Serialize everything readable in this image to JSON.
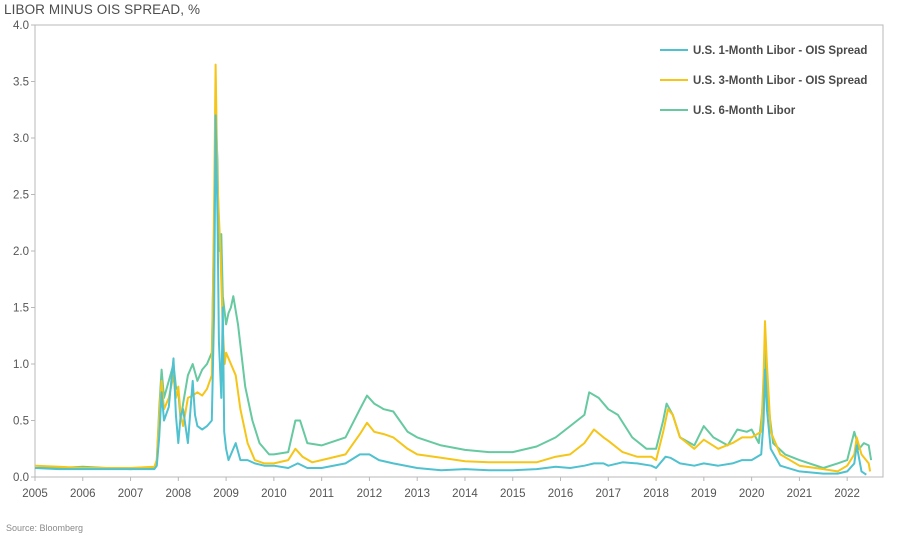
{
  "chart_data": {
    "type": "line",
    "title": "LIBOR MINUS OIS SPREAD, %",
    "source": "Source: Bloomberg",
    "xlabel": "",
    "ylabel": "",
    "xlim": [
      2005.0,
      2022.75
    ],
    "ylim": [
      0.0,
      4.0
    ],
    "x_ticks": [
      "2005",
      "2006",
      "2007",
      "2008",
      "2009",
      "2010",
      "2011",
      "2012",
      "2013",
      "2014",
      "2015",
      "2016",
      "2017",
      "2018",
      "2019",
      "2020",
      "2021",
      "2022"
    ],
    "y_ticks": [
      "0.0",
      "0.5",
      "1.0",
      "1.5",
      "2.0",
      "2.5",
      "3.0",
      "3.5",
      "4.0"
    ],
    "grid": false,
    "legend_position": "top-right",
    "series": [
      {
        "name": "U.S. 1-Month Libor - OIS Spread",
        "color": "#4fc1cf",
        "points": [
          [
            2005.0,
            0.08
          ],
          [
            2005.5,
            0.07
          ],
          [
            2006.0,
            0.07
          ],
          [
            2006.5,
            0.07
          ],
          [
            2007.0,
            0.07
          ],
          [
            2007.5,
            0.07
          ],
          [
            2007.55,
            0.1
          ],
          [
            2007.6,
            0.35
          ],
          [
            2007.65,
            0.75
          ],
          [
            2007.7,
            0.5
          ],
          [
            2007.8,
            0.62
          ],
          [
            2007.9,
            1.05
          ],
          [
            2007.95,
            0.55
          ],
          [
            2008.0,
            0.3
          ],
          [
            2008.05,
            0.55
          ],
          [
            2008.1,
            0.6
          ],
          [
            2008.2,
            0.3
          ],
          [
            2008.3,
            0.85
          ],
          [
            2008.35,
            0.55
          ],
          [
            2008.4,
            0.45
          ],
          [
            2008.5,
            0.42
          ],
          [
            2008.6,
            0.45
          ],
          [
            2008.7,
            0.5
          ],
          [
            2008.75,
            1.5
          ],
          [
            2008.78,
            3.2
          ],
          [
            2008.82,
            2.3
          ],
          [
            2008.85,
            1.2
          ],
          [
            2008.9,
            0.7
          ],
          [
            2008.93,
            1.5
          ],
          [
            2008.96,
            0.4
          ],
          [
            2009.0,
            0.25
          ],
          [
            2009.05,
            0.15
          ],
          [
            2009.2,
            0.3
          ],
          [
            2009.3,
            0.15
          ],
          [
            2009.45,
            0.15
          ],
          [
            2009.6,
            0.12
          ],
          [
            2009.8,
            0.1
          ],
          [
            2010.0,
            0.1
          ],
          [
            2010.3,
            0.08
          ],
          [
            2010.5,
            0.12
          ],
          [
            2010.7,
            0.08
          ],
          [
            2011.0,
            0.08
          ],
          [
            2011.5,
            0.12
          ],
          [
            2011.8,
            0.2
          ],
          [
            2012.0,
            0.2
          ],
          [
            2012.2,
            0.15
          ],
          [
            2012.5,
            0.12
          ],
          [
            2013.0,
            0.08
          ],
          [
            2013.5,
            0.06
          ],
          [
            2014.0,
            0.07
          ],
          [
            2014.5,
            0.06
          ],
          [
            2015.0,
            0.06
          ],
          [
            2015.5,
            0.07
          ],
          [
            2015.9,
            0.09
          ],
          [
            2016.2,
            0.08
          ],
          [
            2016.5,
            0.1
          ],
          [
            2016.7,
            0.12
          ],
          [
            2016.9,
            0.12
          ],
          [
            2017.0,
            0.1
          ],
          [
            2017.3,
            0.13
          ],
          [
            2017.6,
            0.12
          ],
          [
            2017.9,
            0.1
          ],
          [
            2018.0,
            0.08
          ],
          [
            2018.2,
            0.18
          ],
          [
            2018.3,
            0.17
          ],
          [
            2018.5,
            0.12
          ],
          [
            2018.8,
            0.1
          ],
          [
            2019.0,
            0.12
          ],
          [
            2019.3,
            0.1
          ],
          [
            2019.6,
            0.12
          ],
          [
            2019.8,
            0.15
          ],
          [
            2020.0,
            0.15
          ],
          [
            2020.2,
            0.2
          ],
          [
            2020.25,
            0.5
          ],
          [
            2020.28,
            0.95
          ],
          [
            2020.32,
            0.6
          ],
          [
            2020.4,
            0.25
          ],
          [
            2020.6,
            0.1
          ],
          [
            2021.0,
            0.05
          ],
          [
            2021.5,
            0.03
          ],
          [
            2021.8,
            0.03
          ],
          [
            2022.0,
            0.05
          ],
          [
            2022.15,
            0.12
          ],
          [
            2022.2,
            0.28
          ],
          [
            2022.3,
            0.05
          ],
          [
            2022.4,
            0.02
          ]
        ]
      },
      {
        "name": "U.S. 3-Month Libor - OIS Spread",
        "color": "#f5c518",
        "points": [
          [
            2005.0,
            0.1
          ],
          [
            2005.5,
            0.09
          ],
          [
            2006.0,
            0.08
          ],
          [
            2006.5,
            0.08
          ],
          [
            2007.0,
            0.08
          ],
          [
            2007.5,
            0.09
          ],
          [
            2007.55,
            0.15
          ],
          [
            2007.6,
            0.55
          ],
          [
            2007.65,
            0.85
          ],
          [
            2007.7,
            0.6
          ],
          [
            2007.8,
            0.7
          ],
          [
            2007.9,
            0.9
          ],
          [
            2007.95,
            0.7
          ],
          [
            2008.0,
            0.8
          ],
          [
            2008.05,
            0.55
          ],
          [
            2008.1,
            0.45
          ],
          [
            2008.2,
            0.7
          ],
          [
            2008.3,
            0.72
          ],
          [
            2008.4,
            0.75
          ],
          [
            2008.5,
            0.72
          ],
          [
            2008.6,
            0.78
          ],
          [
            2008.7,
            0.9
          ],
          [
            2008.75,
            2.5
          ],
          [
            2008.78,
            3.65
          ],
          [
            2008.82,
            2.6
          ],
          [
            2008.88,
            2.0
          ],
          [
            2008.93,
            1.3
          ],
          [
            2008.97,
            1.0
          ],
          [
            2009.0,
            1.1
          ],
          [
            2009.1,
            1.0
          ],
          [
            2009.2,
            0.9
          ],
          [
            2009.3,
            0.6
          ],
          [
            2009.45,
            0.3
          ],
          [
            2009.6,
            0.15
          ],
          [
            2009.8,
            0.12
          ],
          [
            2010.0,
            0.12
          ],
          [
            2010.3,
            0.15
          ],
          [
            2010.45,
            0.25
          ],
          [
            2010.6,
            0.18
          ],
          [
            2010.8,
            0.13
          ],
          [
            2011.0,
            0.15
          ],
          [
            2011.5,
            0.2
          ],
          [
            2011.8,
            0.38
          ],
          [
            2011.95,
            0.48
          ],
          [
            2012.1,
            0.4
          ],
          [
            2012.3,
            0.38
          ],
          [
            2012.5,
            0.35
          ],
          [
            2012.8,
            0.25
          ],
          [
            2013.0,
            0.2
          ],
          [
            2013.5,
            0.17
          ],
          [
            2014.0,
            0.14
          ],
          [
            2014.5,
            0.13
          ],
          [
            2015.0,
            0.13
          ],
          [
            2015.5,
            0.13
          ],
          [
            2015.9,
            0.18
          ],
          [
            2016.2,
            0.2
          ],
          [
            2016.5,
            0.3
          ],
          [
            2016.7,
            0.42
          ],
          [
            2016.9,
            0.35
          ],
          [
            2017.0,
            0.32
          ],
          [
            2017.3,
            0.22
          ],
          [
            2017.6,
            0.18
          ],
          [
            2017.9,
            0.18
          ],
          [
            2018.0,
            0.15
          ],
          [
            2018.15,
            0.4
          ],
          [
            2018.25,
            0.6
          ],
          [
            2018.35,
            0.55
          ],
          [
            2018.5,
            0.35
          ],
          [
            2018.8,
            0.25
          ],
          [
            2019.0,
            0.33
          ],
          [
            2019.3,
            0.25
          ],
          [
            2019.6,
            0.3
          ],
          [
            2019.8,
            0.35
          ],
          [
            2020.0,
            0.35
          ],
          [
            2020.2,
            0.4
          ],
          [
            2020.25,
            0.9
          ],
          [
            2020.28,
            1.38
          ],
          [
            2020.32,
            1.0
          ],
          [
            2020.4,
            0.4
          ],
          [
            2020.6,
            0.2
          ],
          [
            2021.0,
            0.1
          ],
          [
            2021.5,
            0.07
          ],
          [
            2021.8,
            0.05
          ],
          [
            2022.0,
            0.1
          ],
          [
            2022.15,
            0.2
          ],
          [
            2022.2,
            0.35
          ],
          [
            2022.3,
            0.2
          ],
          [
            2022.45,
            0.12
          ],
          [
            2022.48,
            0.05
          ]
        ]
      },
      {
        "name": "U.S. 6-Month Libor",
        "color": "#66c9a0",
        "points": [
          [
            2005.0,
            0.08
          ],
          [
            2005.5,
            0.08
          ],
          [
            2006.0,
            0.09
          ],
          [
            2006.5,
            0.08
          ],
          [
            2007.0,
            0.07
          ],
          [
            2007.5,
            0.08
          ],
          [
            2007.55,
            0.15
          ],
          [
            2007.6,
            0.6
          ],
          [
            2007.65,
            0.95
          ],
          [
            2007.7,
            0.7
          ],
          [
            2007.8,
            0.85
          ],
          [
            2007.9,
            1.0
          ],
          [
            2007.95,
            0.8
          ],
          [
            2008.0,
            0.75
          ],
          [
            2008.05,
            0.5
          ],
          [
            2008.1,
            0.65
          ],
          [
            2008.2,
            0.9
          ],
          [
            2008.3,
            1.0
          ],
          [
            2008.4,
            0.85
          ],
          [
            2008.5,
            0.95
          ],
          [
            2008.6,
            1.0
          ],
          [
            2008.7,
            1.1
          ],
          [
            2008.75,
            2.2
          ],
          [
            2008.78,
            3.2
          ],
          [
            2008.82,
            2.8
          ],
          [
            2008.85,
            2.0
          ],
          [
            2008.9,
            2.15
          ],
          [
            2008.93,
            1.6
          ],
          [
            2009.0,
            1.35
          ],
          [
            2009.05,
            1.45
          ],
          [
            2009.1,
            1.5
          ],
          [
            2009.15,
            1.6
          ],
          [
            2009.25,
            1.35
          ],
          [
            2009.4,
            0.8
          ],
          [
            2009.55,
            0.5
          ],
          [
            2009.7,
            0.3
          ],
          [
            2009.9,
            0.2
          ],
          [
            2010.0,
            0.2
          ],
          [
            2010.3,
            0.22
          ],
          [
            2010.45,
            0.5
          ],
          [
            2010.55,
            0.5
          ],
          [
            2010.7,
            0.3
          ],
          [
            2011.0,
            0.28
          ],
          [
            2011.5,
            0.35
          ],
          [
            2011.8,
            0.6
          ],
          [
            2011.95,
            0.72
          ],
          [
            2012.1,
            0.65
          ],
          [
            2012.3,
            0.6
          ],
          [
            2012.5,
            0.58
          ],
          [
            2012.8,
            0.4
          ],
          [
            2013.0,
            0.35
          ],
          [
            2013.5,
            0.28
          ],
          [
            2014.0,
            0.24
          ],
          [
            2014.5,
            0.22
          ],
          [
            2015.0,
            0.22
          ],
          [
            2015.5,
            0.27
          ],
          [
            2015.9,
            0.35
          ],
          [
            2016.2,
            0.45
          ],
          [
            2016.5,
            0.55
          ],
          [
            2016.6,
            0.75
          ],
          [
            2016.8,
            0.7
          ],
          [
            2017.0,
            0.6
          ],
          [
            2017.2,
            0.55
          ],
          [
            2017.5,
            0.35
          ],
          [
            2017.8,
            0.25
          ],
          [
            2018.0,
            0.25
          ],
          [
            2018.15,
            0.5
          ],
          [
            2018.22,
            0.65
          ],
          [
            2018.35,
            0.55
          ],
          [
            2018.5,
            0.35
          ],
          [
            2018.8,
            0.28
          ],
          [
            2019.0,
            0.45
          ],
          [
            2019.2,
            0.35
          ],
          [
            2019.5,
            0.28
          ],
          [
            2019.7,
            0.42
          ],
          [
            2019.9,
            0.4
          ],
          [
            2020.0,
            0.42
          ],
          [
            2020.15,
            0.3
          ],
          [
            2020.25,
            0.7
          ],
          [
            2020.28,
            1.15
          ],
          [
            2020.33,
            0.7
          ],
          [
            2020.45,
            0.3
          ],
          [
            2020.7,
            0.2
          ],
          [
            2021.0,
            0.15
          ],
          [
            2021.5,
            0.08
          ],
          [
            2021.8,
            0.12
          ],
          [
            2022.0,
            0.15
          ],
          [
            2022.15,
            0.4
          ],
          [
            2022.25,
            0.25
          ],
          [
            2022.35,
            0.3
          ],
          [
            2022.45,
            0.28
          ],
          [
            2022.5,
            0.15
          ]
        ]
      }
    ]
  }
}
